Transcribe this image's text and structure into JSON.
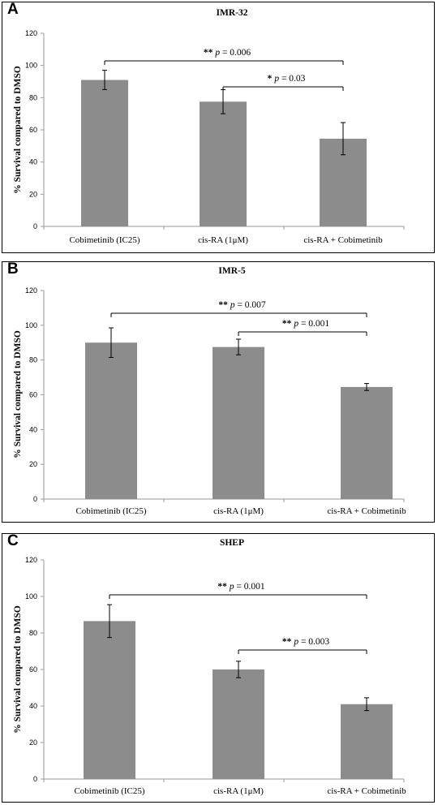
{
  "chart_data": [
    {
      "panel_label": "A",
      "type": "bar",
      "title": "IMR-32",
      "ylabel": "% Survival compared to DMSO",
      "xlabel": "",
      "categories": [
        "Cobimetinib (IC25)",
        "cis-RA (1μM)",
        "cis-RA + Cobimetinib"
      ],
      "values": [
        91,
        77.5,
        54.5
      ],
      "error": [
        6,
        7.5,
        10
      ],
      "ylim": [
        0,
        120
      ],
      "yticks": [
        0,
        20,
        40,
        60,
        80,
        100,
        120
      ],
      "bar_color": "#8c8c8c",
      "annotations": [
        {
          "from": 0,
          "to": 2,
          "stars": "**",
          "p": "p",
          "rest": " = 0.006"
        },
        {
          "from": 1,
          "to": 2,
          "stars": "*",
          "p": "p",
          "rest": " = 0.03"
        }
      ]
    },
    {
      "panel_label": "B",
      "type": "bar",
      "title": "IMR-5",
      "ylabel": "% Survival compared to DMSO",
      "xlabel": "",
      "categories": [
        "Cobimetinib (IC25)",
        "cis-RA (1μM)",
        "cis-RA + Cobimetinib"
      ],
      "values": [
        90,
        87.5,
        64.5
      ],
      "error": [
        8.5,
        4.5,
        2
      ],
      "ylim": [
        0,
        120
      ],
      "yticks": [
        0,
        20,
        40,
        60,
        80,
        100,
        120
      ],
      "bar_color": "#8c8c8c",
      "annotations": [
        {
          "from": 0,
          "to": 2,
          "stars": "**",
          "p": "p",
          "rest": " = 0.007"
        },
        {
          "from": 1,
          "to": 2,
          "stars": "**",
          "p": "p",
          "rest": " = 0.001"
        }
      ]
    },
    {
      "panel_label": "C",
      "type": "bar",
      "title": "SHEP",
      "ylabel": "% Survival compared to DMSO",
      "xlabel": "",
      "categories": [
        "Cobimetinib (IC25)",
        "cis-RA (1μM)",
        "cis-RA + Cobimetinib"
      ],
      "values": [
        86.5,
        60,
        41
      ],
      "error": [
        9,
        4.5,
        3.5
      ],
      "ylim": [
        0,
        120
      ],
      "yticks": [
        0,
        20,
        40,
        60,
        80,
        100,
        120
      ],
      "bar_color": "#8c8c8c",
      "annotations": [
        {
          "from": 0,
          "to": 2,
          "stars": "**",
          "p": "p",
          "rest": " = 0.001"
        },
        {
          "from": 1,
          "to": 2,
          "stars": "**",
          "p": "p",
          "rest": " = 0.003"
        }
      ]
    }
  ]
}
